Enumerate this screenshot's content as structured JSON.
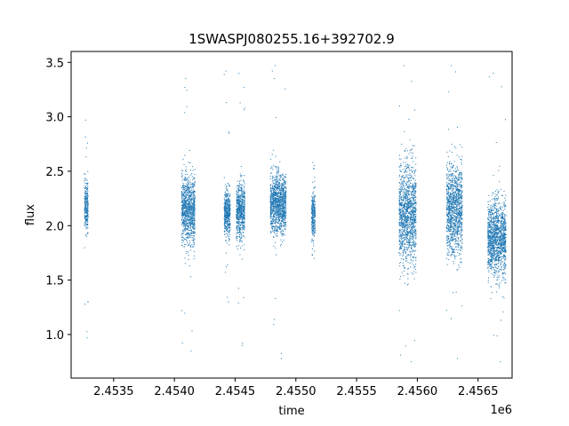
{
  "chart_data": {
    "type": "scatter",
    "title": "1SWASPJ080255.16+392702.9",
    "xlabel": "time",
    "ylabel": "flux",
    "x_offset_label": "1e6",
    "xlim": [
      2453150,
      2456780
    ],
    "ylim": [
      0.6,
      3.6
    ],
    "x_ticks": [
      2453500,
      2454000,
      2454500,
      2455000,
      2455500,
      2456000,
      2456500
    ],
    "x_tick_labels": [
      "2.4535",
      "2.4540",
      "2.4545",
      "2.4550",
      "2.4555",
      "2.4560",
      "2.4565"
    ],
    "y_ticks": [
      1.0,
      1.5,
      2.0,
      2.5,
      3.0,
      3.5
    ],
    "y_tick_labels": [
      "1.0",
      "1.5",
      "2.0",
      "2.5",
      "3.0",
      "3.5"
    ],
    "grid": false,
    "legend": "none",
    "marker_color": "#1f77b4",
    "series": [
      {
        "values_description": "observing-season clusters (time ranges, typical flux center, spread, extreme points)",
        "clusters": [
          {
            "x_start": 2453260,
            "x_end": 2453290,
            "center": 2.18,
            "spread": 0.2,
            "min": 0.97,
            "max": 2.97
          },
          {
            "x_start": 2454060,
            "x_end": 2454170,
            "center": 2.15,
            "spread": 0.28,
            "min": 0.85,
            "max": 3.35
          },
          {
            "x_start": 2454410,
            "x_end": 2454460,
            "center": 2.12,
            "spread": 0.18,
            "min": 1.3,
            "max": 3.42
          },
          {
            "x_start": 2454510,
            "x_end": 2454580,
            "center": 2.13,
            "spread": 0.24,
            "min": 0.9,
            "max": 3.4
          },
          {
            "x_start": 2454790,
            "x_end": 2454920,
            "center": 2.2,
            "spread": 0.25,
            "min": 0.78,
            "max": 3.47
          },
          {
            "x_start": 2455130,
            "x_end": 2455160,
            "center": 2.1,
            "spread": 0.2,
            "min": 1.7,
            "max": 2.58
          },
          {
            "x_start": 2455850,
            "x_end": 2455990,
            "center": 2.1,
            "spread": 0.42,
            "min": 0.75,
            "max": 3.47
          },
          {
            "x_start": 2456240,
            "x_end": 2456370,
            "center": 2.15,
            "spread": 0.38,
            "min": 0.78,
            "max": 3.47
          },
          {
            "x_start": 2456580,
            "x_end": 2456730,
            "center": 1.88,
            "spread": 0.32,
            "min": 0.75,
            "max": 3.4
          }
        ]
      }
    ]
  }
}
